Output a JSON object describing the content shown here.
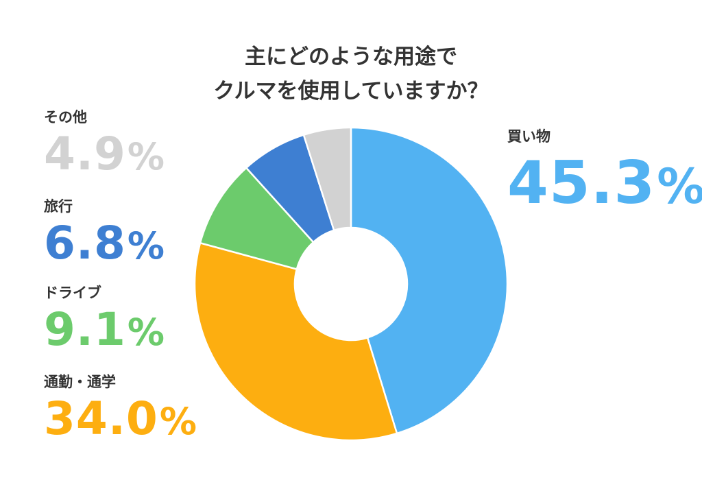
{
  "chart_data": {
    "type": "pie",
    "style": "donut",
    "title_lines": [
      "主にどのような用途で",
      "クルマを使用していますか？"
    ],
    "unit": "%",
    "slices": [
      {
        "label": "買い物",
        "value": 45.3,
        "value_text": "45.3",
        "color": "#52B2F2"
      },
      {
        "label": "通勤・通学",
        "value": 34.0,
        "value_text": "34.0",
        "color": "#FDAE10"
      },
      {
        "label": "ドライブ",
        "value": 9.1,
        "value_text": "9.1",
        "color": "#6CCB6C"
      },
      {
        "label": "旅行",
        "value": 6.8,
        "value_text": "6.8",
        "color": "#3E7FD2"
      },
      {
        "label": "その他",
        "value": 4.9,
        "value_text": "4.9",
        "color": "#D2D2D2"
      }
    ],
    "start_angle": "12 o'clock",
    "direction": "clockwise"
  }
}
